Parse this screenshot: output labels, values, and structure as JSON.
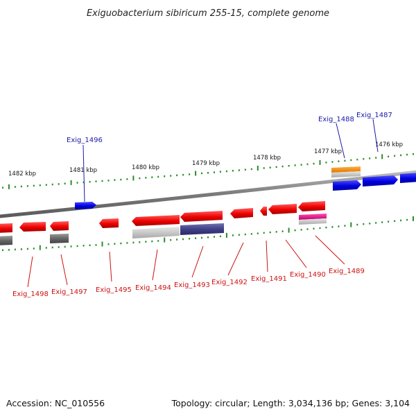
{
  "title": "Exiguobacterium sibiricum 255-15, complete genome",
  "footer": {
    "accession": "Accession: NC_010556",
    "summary": "Topology: circular; Length: 3,034,136 bp; Genes: 3,104"
  },
  "colors": {
    "backbone": "#888888",
    "tick": "#2a8a2a",
    "forward_gene": "#1010e0",
    "reverse_gene": "#e01010",
    "forward_label": "#1a1aa8",
    "reverse_label": "#cc1111",
    "orange_feature": "#f08a00",
    "magenta_feature": "#e0108a",
    "grey_feature": "#666666",
    "navy_feature": "#404088"
  },
  "axis_ticks": [
    {
      "label": "1482 kbp"
    },
    {
      "label": "1481 kbp"
    },
    {
      "label": "1480 kbp"
    },
    {
      "label": "1479 kbp"
    },
    {
      "label": "1478 kbp"
    },
    {
      "label": "1477 kbp"
    },
    {
      "label": "1476 kbp"
    }
  ],
  "forward_labels": [
    {
      "text": "Exig_1496"
    },
    {
      "text": "Exig_1488"
    },
    {
      "text": "Exig_1487"
    }
  ],
  "reverse_labels": [
    {
      "text": "Exig_1498"
    },
    {
      "text": "Exig_1497"
    },
    {
      "text": "Exig_1495"
    },
    {
      "text": "Exig_1494"
    },
    {
      "text": "Exig_1493"
    },
    {
      "text": "Exig_1492"
    },
    {
      "text": "Exig_1491"
    },
    {
      "text": "Exig_1490"
    },
    {
      "text": "Exig_1489"
    }
  ]
}
